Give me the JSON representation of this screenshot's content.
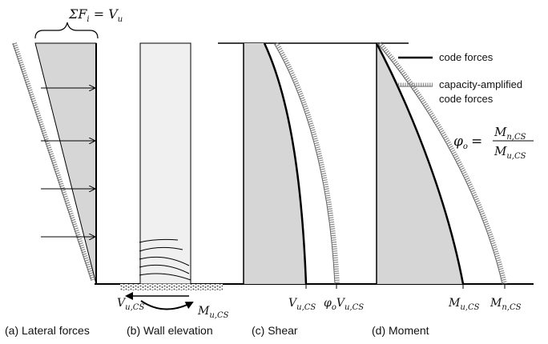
{
  "force_sum": {
    "sigma": "ΣF",
    "i": "i",
    "eq": " = V",
    "u": "u"
  },
  "legend": {
    "code_forces": "code forces",
    "amplified_line1": "capacity-amplified",
    "amplified_line2": "code forces"
  },
  "phi_eq": {
    "phi": "φ",
    "o": "o",
    "eq": "=",
    "num_M": "M",
    "num_sub": "n,CS",
    "den_M": "M",
    "den_sub": "u,CS"
  },
  "base_labels": {
    "wall_V": "V",
    "wall_V_sub": "u,CS",
    "wall_M": "M",
    "wall_M_sub": "u,CS",
    "shear_V": "V",
    "shear_V_sub": "u,CS",
    "shear_phi": "φ",
    "shear_phi_sub": "o",
    "shear_phiV": "V",
    "shear_phiV_sub": "u,CS",
    "moment_M": "M",
    "moment_M_sub": "u,CS",
    "moment_Mn": "M",
    "moment_Mn_sub": "n,CS"
  },
  "captions": {
    "a": "(a) Lateral forces",
    "b": "(b) Wall elevation",
    "c": "(c) Shear",
    "d": "(d) Moment"
  },
  "colors": {
    "fill": "#d6d6d6",
    "wall": "#f0f0f0",
    "hatch": "#8a8a8a",
    "line": "#000000"
  }
}
